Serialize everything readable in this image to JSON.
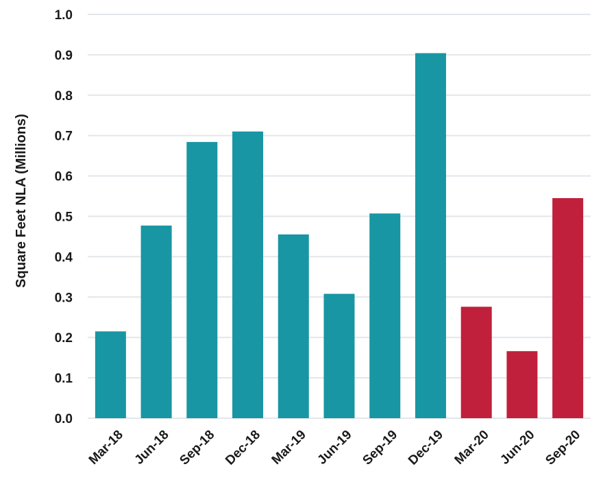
{
  "chart_data": {
    "type": "bar",
    "categories": [
      "Mar-18",
      "Jun-18",
      "Sep-18",
      "Dec-18",
      "Mar-19",
      "Jun-19",
      "Sep-19",
      "Dec-19",
      "Mar-20",
      "Jun-20",
      "Sep-20"
    ],
    "values": [
      0.215,
      0.477,
      0.684,
      0.71,
      0.455,
      0.308,
      0.507,
      0.904,
      0.276,
      0.166,
      0.545
    ],
    "bar_colors": [
      "#1896a3",
      "#1896a3",
      "#1896a3",
      "#1896a3",
      "#1896a3",
      "#1896a3",
      "#1896a3",
      "#1896a3",
      "#c0203b",
      "#c0203b",
      "#c0203b"
    ],
    "title": "",
    "xlabel": "",
    "ylabel": "Square Feet NLA (Millions)",
    "ylim": [
      0,
      1.0
    ],
    "yticks": [
      "0.0",
      "0.1",
      "0.2",
      "0.3",
      "0.4",
      "0.5",
      "0.6",
      "0.7",
      "0.8",
      "0.9",
      "1.0"
    ],
    "grid": true,
    "legend": "none"
  }
}
